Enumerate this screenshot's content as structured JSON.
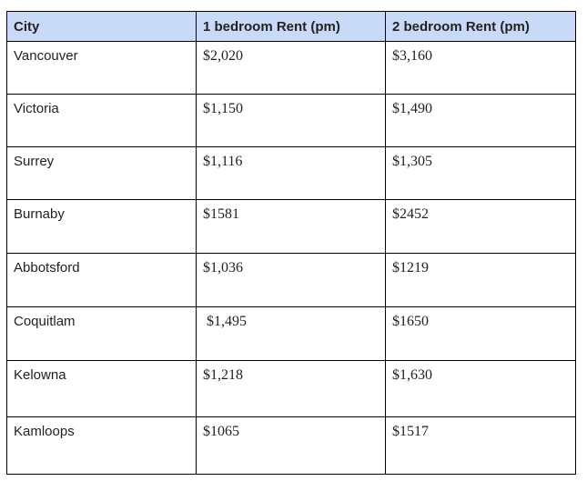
{
  "table": {
    "headers": [
      "City",
      "1 bedroom Rent (pm)",
      "2 bedroom Rent (pm)"
    ],
    "rows": [
      [
        "Vancouver",
        "$2,020",
        "$3,160"
      ],
      [
        "Victoria",
        "$1,150",
        "$1,490"
      ],
      [
        "Surrey",
        "$1,116",
        "$1,305"
      ],
      [
        "Burnaby",
        "$1581",
        "$2452"
      ],
      [
        "Abbotsford",
        "$1,036",
        "$1219"
      ],
      [
        "Coquitlam",
        "$1,495",
        "$1650"
      ],
      [
        "Kelowna",
        "$1,218",
        "$1,630"
      ],
      [
        "Kamloops",
        "$1065",
        "$1517"
      ]
    ]
  },
  "colors": {
    "header_background": "#c9daf8",
    "border": "#000000",
    "text": "#222222"
  }
}
